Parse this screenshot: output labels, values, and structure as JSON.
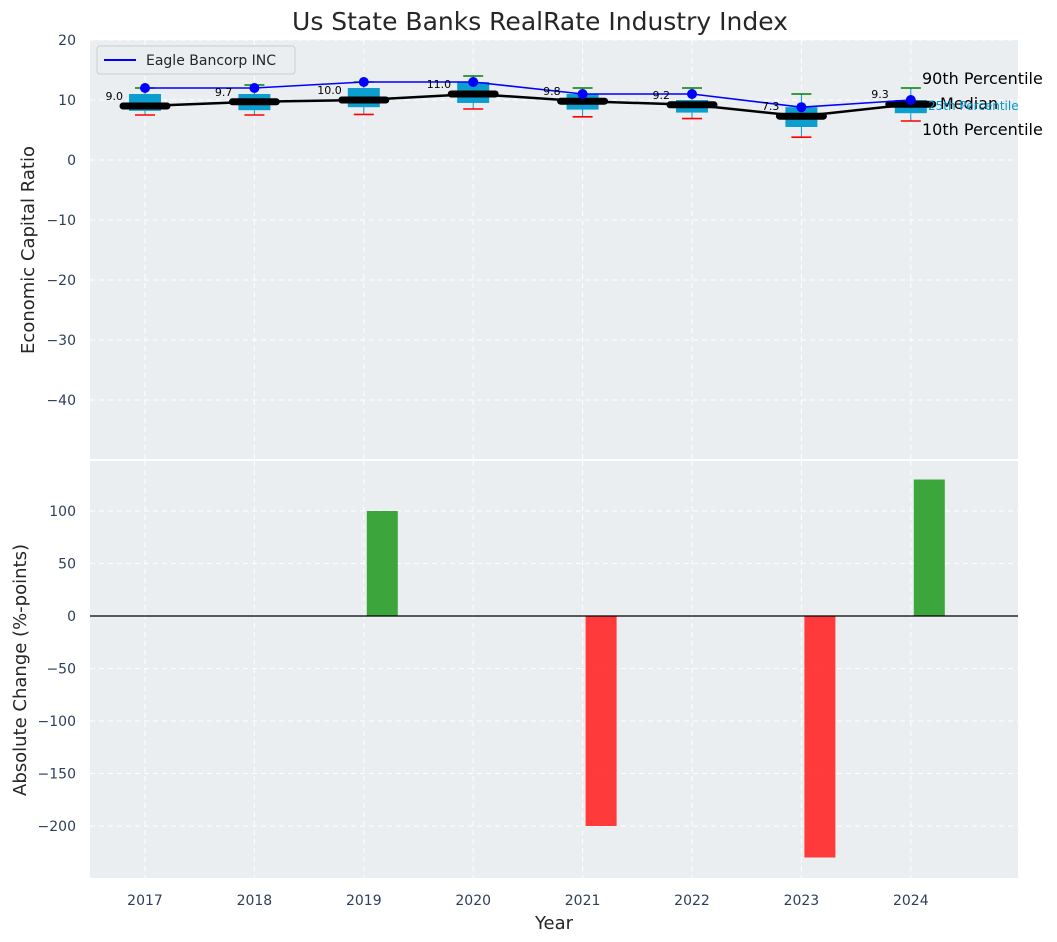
{
  "chart_data": [
    {
      "type": "box",
      "title": "Us State Banks RealRate Industry Index",
      "ylabel": "Economic Capital Ratio",
      "xlabel": "",
      "ylim": [
        -50,
        20
      ],
      "yticks": [
        20,
        10,
        0,
        -10,
        -20,
        -30,
        -40
      ],
      "categories": [
        "2017",
        "2018",
        "2019",
        "2020",
        "2021",
        "2022",
        "2023",
        "2024"
      ],
      "legend": {
        "position": "top-left",
        "entries": [
          "Eagle Bancorp INC"
        ]
      },
      "boxes": [
        {
          "year": "2017",
          "p10": 7.5,
          "q1": 8.2,
          "median": 9.0,
          "q3": 11.0,
          "p90": 12.0
        },
        {
          "year": "2018",
          "p10": 7.5,
          "q1": 8.3,
          "median": 9.7,
          "q3": 11.0,
          "p90": 12.5
        },
        {
          "year": "2019",
          "p10": 7.6,
          "q1": 8.8,
          "median": 10.0,
          "q3": 12.0,
          "p90": 13.0
        },
        {
          "year": "2020",
          "p10": 8.5,
          "q1": 9.5,
          "median": 11.0,
          "q3": 13.0,
          "p90": 14.0
        },
        {
          "year": "2021",
          "p10": 7.2,
          "q1": 8.4,
          "median": 9.8,
          "q3": 11.0,
          "p90": 12.0
        },
        {
          "year": "2022",
          "p10": 6.9,
          "q1": 7.9,
          "median": 9.2,
          "q3": 10.0,
          "p90": 12.0
        },
        {
          "year": "2023",
          "p10": 3.8,
          "q1": 5.5,
          "median": 7.3,
          "q3": 8.8,
          "p90": 11.0
        },
        {
          "year": "2024",
          "p10": 6.5,
          "q1": 7.8,
          "median": 9.3,
          "q3": 10.0,
          "p90": 12.0
        }
      ],
      "median_labels": [
        "9.0",
        "9.7",
        "10.0",
        "11.0",
        "9.8",
        "9.2",
        "7.3",
        "9.3"
      ],
      "series": [
        {
          "name": "Eagle Bancorp INC",
          "values": [
            12.0,
            12.0,
            13.0,
            13.0,
            11.0,
            11.0,
            8.8,
            10.0
          ]
        }
      ],
      "annotations": [
        "90th Percentile",
        "Median",
        "25th Percentile",
        "10th Percentile"
      ]
    },
    {
      "type": "bar",
      "ylabel": "Absolute Change (%-points)",
      "xlabel": "Year",
      "ylim": [
        -250,
        150
      ],
      "yticks": [
        100,
        50,
        0,
        -50,
        -100,
        -150,
        -200
      ],
      "categories": [
        "2017",
        "2018",
        "2019",
        "2020",
        "2021",
        "2022",
        "2023",
        "2024"
      ],
      "values": [
        0,
        0,
        100,
        0,
        -200,
        0,
        -230,
        130
      ]
    }
  ],
  "colors": {
    "box_fill": "#0099cc",
    "median_line": "#000000",
    "company_line": "#0000ff",
    "p90_whisker": "#008000",
    "p10_whisker": "#ff0000",
    "positive_bar": "#2ca02c",
    "negative_bar": "#ff2a2a",
    "annotation_25th": "#0099cc"
  }
}
